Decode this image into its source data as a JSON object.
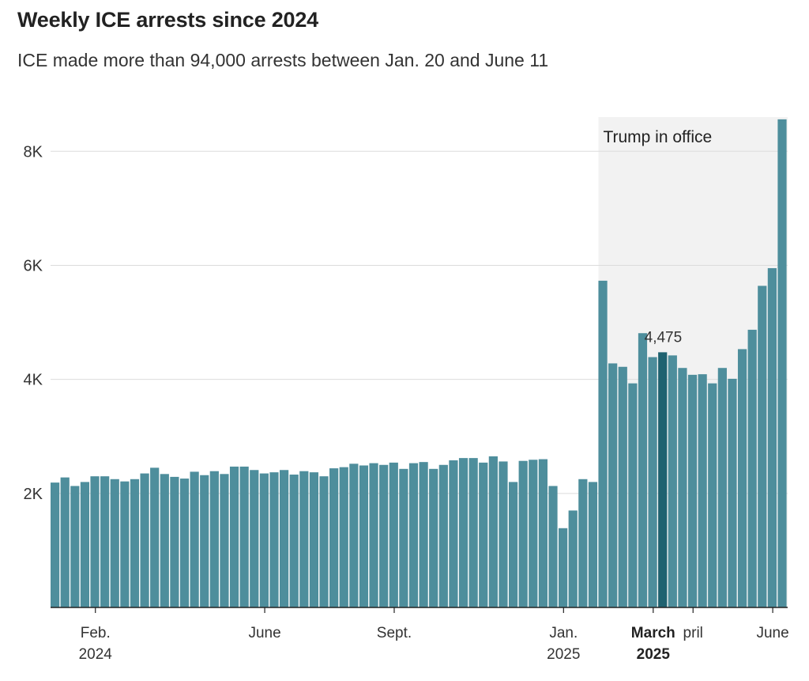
{
  "header": {
    "title": "Weekly ICE arrests since 2024",
    "subtitle": "ICE made more than 94,000 arrests between Jan. 20 and June 11"
  },
  "colors": {
    "bar": "#4e8e9c",
    "highlight_bar": "#1f6270",
    "shade": "#f2f2f2",
    "grid": "#dcdcdc",
    "axis": "#222222"
  },
  "chart_data": {
    "type": "bar",
    "ylim": [
      0,
      8600
    ],
    "y_ticks": [
      {
        "value": 2000,
        "label": "2K"
      },
      {
        "value": 4000,
        "label": "4K"
      },
      {
        "value": 6000,
        "label": "6K"
      },
      {
        "value": 8000,
        "label": "8K"
      }
    ],
    "x_ticks": [
      {
        "bar_index": 4,
        "line1": "Feb.",
        "line2": "2024",
        "bold": false
      },
      {
        "bar_index": 21,
        "line1": "June",
        "line2": "",
        "bold": false
      },
      {
        "bar_index": 34,
        "line1": "Sept.",
        "line2": "",
        "bold": false
      },
      {
        "bar_index": 51,
        "line1": "Jan.",
        "line2": "2025",
        "bold": false
      },
      {
        "bar_index": 60,
        "line1": "March",
        "line2": "2025",
        "bold": true
      },
      {
        "bar_index": 64,
        "line1": "pril",
        "line2": "",
        "bold": false
      },
      {
        "bar_index": 72,
        "line1": "June",
        "line2": "",
        "bold": false
      }
    ],
    "values": [
      2190,
      2280,
      2130,
      2200,
      2300,
      2300,
      2250,
      2210,
      2250,
      2350,
      2450,
      2340,
      2290,
      2260,
      2380,
      2320,
      2390,
      2340,
      2470,
      2470,
      2410,
      2350,
      2370,
      2410,
      2330,
      2390,
      2370,
      2300,
      2440,
      2460,
      2520,
      2490,
      2530,
      2500,
      2540,
      2430,
      2530,
      2550,
      2430,
      2500,
      2580,
      2620,
      2620,
      2540,
      2650,
      2560,
      2200,
      2570,
      2590,
      2600,
      2130,
      1390,
      1700,
      2250,
      2200,
      5730,
      4280,
      4220,
      3930,
      4810,
      4390,
      4475,
      4420,
      4200,
      4080,
      4090,
      3930,
      4200,
      4010,
      4530,
      4870,
      5640,
      5950,
      8560
    ],
    "highlight_index": 61,
    "highlight_label": "4,475",
    "shaded_from_index": 55,
    "shaded_label": "Trump in office"
  }
}
